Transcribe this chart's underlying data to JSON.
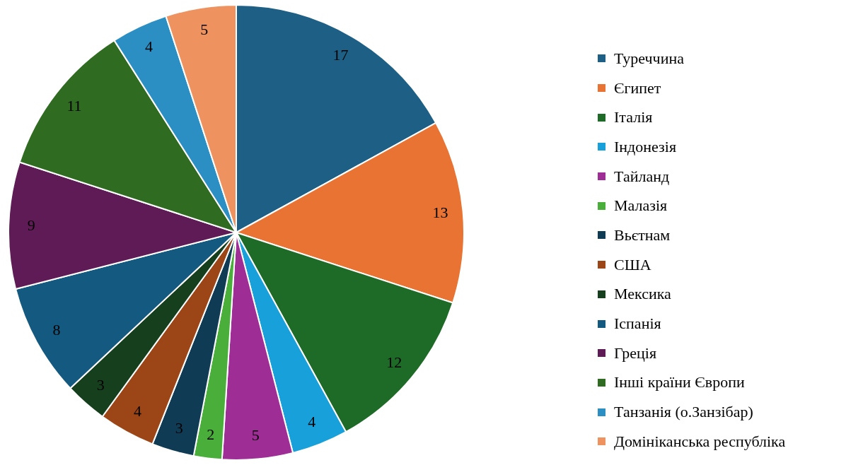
{
  "chart_data": {
    "type": "pie",
    "categories": [
      "Туреччина",
      "Єгипет",
      "Італія",
      "Індонезія",
      "Тайланд",
      "Малазія",
      "Вьєтнам",
      "США",
      "Мексика",
      "Іспанія",
      "Греція",
      "Інші країни Європи",
      "Танзанія (о.Занзібар)",
      "Домініканська республіка"
    ],
    "values": [
      17,
      13,
      12,
      4,
      5,
      2,
      3,
      4,
      3,
      8,
      9,
      11,
      4,
      5
    ],
    "colors": [
      "#1d5f85",
      "#e87332",
      "#1e6b27",
      "#17a0d9",
      "#9e2d96",
      "#4aae3a",
      "#0f3b55",
      "#9c4516",
      "#163f1d",
      "#14597f",
      "#5e1b55",
      "#2f6b20",
      "#2b8fc4",
      "#ee935f"
    ],
    "data_labels": true,
    "legend": "right"
  }
}
